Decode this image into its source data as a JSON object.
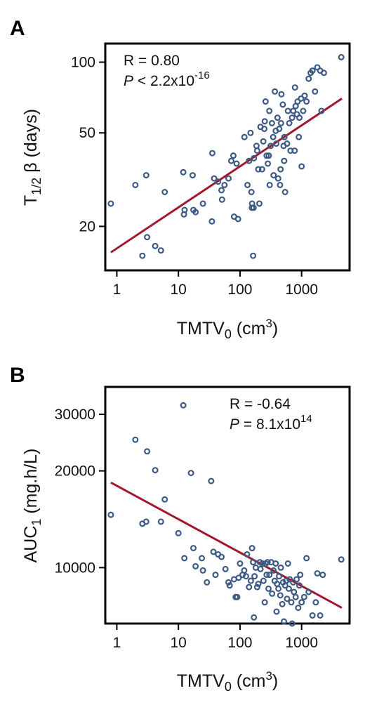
{
  "colors": {
    "point": "#3d5a85",
    "fit_line": "#a3182f",
    "frame": "#000000"
  },
  "chart_data": [
    {
      "panel": "A",
      "type": "scatter",
      "x_scale": "log",
      "y_scale": "log",
      "xlim": [
        0.65,
        6000
      ],
      "ylim": [
        13,
        120
      ],
      "xticks": [
        1,
        10,
        100,
        1000
      ],
      "xtick_labels": [
        "1",
        "10",
        "100",
        "1000"
      ],
      "yticks": [
        20,
        50,
        100
      ],
      "ytick_labels": [
        "20",
        "50",
        "100"
      ],
      "xlabel": "TMTV",
      "xlabel_sub": "0",
      "xlabel_unit_pre": " (cm",
      "xlabel_unit_sup": "3",
      "xlabel_unit_post": ")",
      "ylabel_pre": "T",
      "ylabel_sub": "1/2",
      "ylabel_post": " β (days)",
      "stat_r": "R = 0.80",
      "stat_p_label": "P",
      "stat_p_value": " < 2.2x10",
      "stat_p_exp": "-16",
      "fit_line": {
        "x": [
          0.8,
          4500
        ],
        "y": [
          15.5,
          70
        ]
      },
      "points": [
        [
          0.8,
          25
        ],
        [
          2.0,
          30
        ],
        [
          2.6,
          15
        ],
        [
          3.0,
          33
        ],
        [
          3.1,
          18
        ],
        [
          4.2,
          16.5
        ],
        [
          5.2,
          15.8
        ],
        [
          6.0,
          28
        ],
        [
          12,
          34
        ],
        [
          12.3,
          22.5
        ],
        [
          12.6,
          23.5
        ],
        [
          17,
          33
        ],
        [
          17.5,
          23.5
        ],
        [
          19,
          23
        ],
        [
          25,
          25
        ],
        [
          35,
          21
        ],
        [
          35.5,
          41
        ],
        [
          38,
          32
        ],
        [
          44,
          31
        ],
        [
          50,
          28.5
        ],
        [
          51,
          26
        ],
        [
          56,
          30
        ],
        [
          65,
          32
        ],
        [
          72,
          38
        ],
        [
          78,
          40
        ],
        [
          80,
          22
        ],
        [
          88,
          37
        ],
        [
          93,
          21.5
        ],
        [
          118,
          48
        ],
        [
          132,
          30
        ],
        [
          140,
          38
        ],
        [
          148,
          50
        ],
        [
          153,
          28
        ],
        [
          156,
          24
        ],
        [
          157,
          25
        ],
        [
          163,
          15
        ],
        [
          166,
          24
        ],
        [
          168,
          39
        ],
        [
          185,
          44
        ],
        [
          190,
          42
        ],
        [
          198,
          35
        ],
        [
          206,
          25
        ],
        [
          215,
          53
        ],
        [
          228,
          35
        ],
        [
          239,
          46
        ],
        [
          248,
          52
        ],
        [
          252,
          56
        ],
        [
          260,
          68
        ],
        [
          270,
          40
        ],
        [
          283,
          37
        ],
        [
          293,
          40
        ],
        [
          299,
          62
        ],
        [
          303,
          30
        ],
        [
          314,
          44
        ],
        [
          330,
          55
        ],
        [
          345,
          48
        ],
        [
          351,
          33
        ],
        [
          368,
          75
        ],
        [
          380,
          51
        ],
        [
          388,
          45
        ],
        [
          406,
          58
        ],
        [
          416,
          32
        ],
        [
          432,
          52
        ],
        [
          446,
          30
        ],
        [
          455,
          35
        ],
        [
          463,
          55
        ],
        [
          470,
          73
        ],
        [
          495,
          66
        ],
        [
          509,
          44
        ],
        [
          520,
          38
        ],
        [
          525,
          48
        ],
        [
          540,
          28
        ],
        [
          580,
          45
        ],
        [
          600,
          62
        ],
        [
          630,
          55
        ],
        [
          660,
          42
        ],
        [
          700,
          58
        ],
        [
          730,
          62
        ],
        [
          770,
          42
        ],
        [
          780,
          78
        ],
        [
          800,
          65
        ],
        [
          840,
          60
        ],
        [
          860,
          68
        ],
        [
          900,
          48
        ],
        [
          920,
          58
        ],
        [
          980,
          70
        ],
        [
          1000,
          36
        ],
        [
          1060,
          62
        ],
        [
          1120,
          72
        ],
        [
          1200,
          68
        ],
        [
          1300,
          85
        ],
        [
          1400,
          90
        ],
        [
          1500,
          92
        ],
        [
          1650,
          75
        ],
        [
          1800,
          95
        ],
        [
          2000,
          92
        ],
        [
          2100,
          62
        ],
        [
          2300,
          90
        ],
        [
          4400,
          105
        ]
      ]
    },
    {
      "panel": "B",
      "type": "scatter",
      "x_scale": "log",
      "y_scale": "log",
      "xlim": [
        0.65,
        6000
      ],
      "ylim": [
        6700,
        36500
      ],
      "xticks": [
        1,
        10,
        100,
        1000
      ],
      "xtick_labels": [
        "1",
        "10",
        "100",
        "1000"
      ],
      "yticks": [
        10000,
        20000,
        30000
      ],
      "ytick_labels": [
        "10000",
        "20000",
        "30000"
      ],
      "xlabel": "TMTV",
      "xlabel_sub": "0",
      "xlabel_unit_pre": " (cm",
      "xlabel_unit_sup": "3",
      "xlabel_unit_post": ")",
      "ylabel_pre": "AUC",
      "ylabel_sub": "1",
      "ylabel_post": " (mg.h/L)",
      "stat_r": "R = -0.64",
      "stat_p_label": "P",
      "stat_p_value": " = 8.1x10",
      "stat_p_exp": "14",
      "fit_line": {
        "x": [
          0.8,
          4500
        ],
        "y": [
          18400,
          7500
        ]
      },
      "points": [
        [
          0.8,
          14600
        ],
        [
          2.0,
          25000
        ],
        [
          2.6,
          13700
        ],
        [
          3.0,
          13900
        ],
        [
          3.1,
          23000
        ],
        [
          4.2,
          20100
        ],
        [
          5.2,
          13900
        ],
        [
          6.0,
          16300
        ],
        [
          10,
          12800
        ],
        [
          12,
          32000
        ],
        [
          12.5,
          10700
        ],
        [
          16,
          19700
        ],
        [
          17.5,
          11500
        ],
        [
          19,
          10100
        ],
        [
          24,
          10700
        ],
        [
          25,
          9800
        ],
        [
          29,
          9000
        ],
        [
          34,
          18600
        ],
        [
          37,
          11200
        ],
        [
          40,
          9500
        ],
        [
          44,
          11000
        ],
        [
          50,
          10800
        ],
        [
          58,
          9900
        ],
        [
          65,
          9000
        ],
        [
          68,
          8800
        ],
        [
          80,
          9200
        ],
        [
          85,
          8100
        ],
        [
          90,
          8100
        ],
        [
          95,
          9300
        ],
        [
          100,
          10300
        ],
        [
          110,
          9500
        ],
        [
          117,
          9800
        ],
        [
          125,
          9400
        ],
        [
          130,
          11000
        ],
        [
          140,
          8700
        ],
        [
          150,
          9100
        ],
        [
          157,
          11500
        ],
        [
          163,
          10400
        ],
        [
          168,
          7000
        ],
        [
          172,
          9400
        ],
        [
          180,
          10000
        ],
        [
          190,
          8700
        ],
        [
          198,
          8900
        ],
        [
          210,
          10400
        ],
        [
          215,
          9900
        ],
        [
          230,
          10300
        ],
        [
          240,
          9100
        ],
        [
          252,
          7800
        ],
        [
          261,
          10300
        ],
        [
          270,
          9500
        ],
        [
          280,
          10400
        ],
        [
          290,
          8600
        ],
        [
          300,
          9500
        ],
        [
          320,
          10400
        ],
        [
          332,
          8300
        ],
        [
          350,
          9800
        ],
        [
          365,
          9100
        ],
        [
          380,
          10300
        ],
        [
          392,
          7300
        ],
        [
          400,
          8900
        ],
        [
          420,
          8600
        ],
        [
          430,
          9400
        ],
        [
          450,
          8200
        ],
        [
          460,
          10000
        ],
        [
          485,
          7700
        ],
        [
          500,
          9000
        ],
        [
          517,
          6800
        ],
        [
          540,
          8800
        ],
        [
          560,
          9100
        ],
        [
          580,
          8000
        ],
        [
          600,
          10300
        ],
        [
          620,
          8600
        ],
        [
          640,
          9200
        ],
        [
          680,
          7800
        ],
        [
          700,
          6700
        ],
        [
          730,
          9000
        ],
        [
          750,
          8400
        ],
        [
          800,
          8100
        ],
        [
          830,
          9200
        ],
        [
          880,
          7500
        ],
        [
          920,
          8800
        ],
        [
          950,
          9500
        ],
        [
          1000,
          7800
        ],
        [
          1100,
          8100
        ],
        [
          1200,
          10700
        ],
        [
          1300,
          8400
        ],
        [
          1500,
          7100
        ],
        [
          1700,
          7800
        ],
        [
          1800,
          9600
        ],
        [
          2000,
          7100
        ],
        [
          2200,
          9500
        ],
        [
          4400,
          10600
        ]
      ]
    }
  ]
}
